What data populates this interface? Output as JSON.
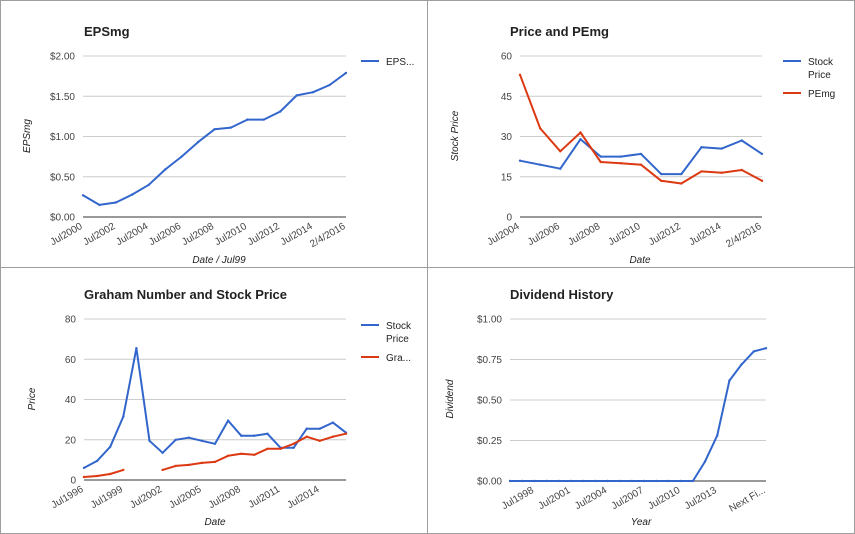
{
  "charts": [
    {
      "title": "EPSmg",
      "xlabel": "Date / Jul99",
      "ylabel": "EPSmg",
      "x_ticks": [
        "Jul2000",
        "Jul2002",
        "Jul2004",
        "Jul2006",
        "Jul2008",
        "Jul2010",
        "Jul2012",
        "Jul2014",
        "2/4/2016"
      ],
      "y_ticks": [
        "$0.00",
        "$0.50",
        "$1.00",
        "$1.50",
        "$2.00"
      ],
      "legend": [
        "EPS..."
      ]
    },
    {
      "title": "Price and PEmg",
      "xlabel": "Date",
      "ylabel": "Stock Price",
      "x_ticks": [
        "Jul2004",
        "Jul2006",
        "Jul2008",
        "Jul2010",
        "Jul2012",
        "Jul2014",
        "2/4/2016"
      ],
      "y_ticks": [
        "0",
        "15",
        "30",
        "45",
        "60"
      ],
      "legend": [
        [
          "Stock",
          "Price"
        ],
        [
          "PEmg"
        ]
      ]
    },
    {
      "title": "Graham Number and Stock Price",
      "xlabel": "Date",
      "ylabel": "Price",
      "x_ticks": [
        "Jul1996",
        "Jul1999",
        "Jul2002",
        "Jul2005",
        "Jul2008",
        "Jul2011",
        "Jul2014"
      ],
      "y_ticks": [
        "0",
        "20",
        "40",
        "60",
        "80"
      ],
      "legend": [
        [
          "Stock",
          "Price"
        ],
        [
          "Gra..."
        ]
      ]
    },
    {
      "title": "Dividend History",
      "xlabel": "Year",
      "ylabel": "Dividend",
      "x_ticks": [
        "Jul1998",
        "Jul2001",
        "Jul2004",
        "Jul2007",
        "Jul2010",
        "Jul2013",
        "Next Fi..."
      ],
      "y_ticks": [
        "$0.00",
        "$0.25",
        "$0.50",
        "$0.75",
        "$1.00"
      ],
      "legend": []
    }
  ],
  "chart_data": [
    {
      "type": "line",
      "title": "EPSmg",
      "xlabel": "Date / Jul99",
      "ylabel": "EPSmg",
      "ylim": [
        0,
        2
      ],
      "x_ticks": [
        "Jul2000",
        "Jul2002",
        "Jul2004",
        "Jul2006",
        "Jul2008",
        "Jul2010",
        "Jul2012",
        "Jul2014",
        "2/4/2016"
      ],
      "series": [
        {
          "name": "EPS...",
          "color": "#3366cc",
          "x": [
            2000,
            2001,
            2002,
            2003,
            2004,
            2005,
            2006,
            2007,
            2008,
            2009,
            2010,
            2011,
            2012,
            2013,
            2014,
            2015,
            2016
          ],
          "values": [
            0.27,
            0.15,
            0.18,
            0.28,
            0.4,
            0.59,
            0.75,
            0.93,
            1.09,
            1.11,
            1.21,
            1.21,
            1.31,
            1.51,
            1.55,
            1.64,
            1.79
          ]
        }
      ]
    },
    {
      "type": "line",
      "title": "Price and PEmg",
      "xlabel": "Date",
      "ylabel": "Stock Price",
      "ylim": [
        0,
        60
      ],
      "x_ticks": [
        "Jul2004",
        "Jul2006",
        "Jul2008",
        "Jul2010",
        "Jul2012",
        "Jul2014",
        "2/4/2016"
      ],
      "series": [
        {
          "name": "Stock Price",
          "color": "#3366cc",
          "x": [
            2004,
            2005,
            2006,
            2007,
            2008,
            2009,
            2010,
            2011,
            2012,
            2013,
            2014,
            2015,
            2016
          ],
          "values": [
            21,
            19.5,
            18,
            29,
            22.5,
            22.5,
            23.5,
            16,
            16,
            26,
            25.5,
            28.5,
            23.5
          ]
        },
        {
          "name": "PEmg",
          "color": "#dc3912",
          "x": [
            2004,
            2005,
            2006,
            2007,
            2008,
            2009,
            2010,
            2011,
            2012,
            2013,
            2014,
            2015,
            2016
          ],
          "values": [
            53,
            33,
            24.5,
            31.5,
            20.5,
            20,
            19.5,
            13.5,
            12.5,
            17,
            16.5,
            17.5,
            13.5
          ]
        }
      ]
    },
    {
      "type": "line",
      "title": "Graham Number and Stock Price",
      "xlabel": "Date",
      "ylabel": "Price",
      "ylim": [
        0,
        80
      ],
      "x_ticks": [
        "Jul1996",
        "Jul1999",
        "Jul2002",
        "Jul2005",
        "Jul2008",
        "Jul2011",
        "Jul2014"
      ],
      "series": [
        {
          "name": "Stock Price",
          "color": "#3366cc",
          "x": [
            1996,
            1997,
            1998,
            1999,
            2000,
            2001,
            2002,
            2003,
            2004,
            2005,
            2006,
            2007,
            2008,
            2009,
            2010,
            2011,
            2012,
            2013,
            2014,
            2015,
            2016
          ],
          "values": [
            6,
            9.5,
            16.5,
            31.5,
            65.5,
            19.5,
            13.5,
            20,
            21,
            19.5,
            18,
            29.5,
            22,
            22,
            23,
            16,
            16,
            25.5,
            25.5,
            28.5,
            23.5
          ]
        },
        {
          "name": "Gra...",
          "color": "#dc3912",
          "x": [
            1996,
            1997,
            1998,
            1999,
            2000,
            null,
            2002,
            2003,
            2004,
            2005,
            2006,
            2007,
            2008,
            2009,
            2010,
            2011,
            2012,
            2013,
            2014,
            2015,
            2016
          ],
          "values": [
            1.5,
            2,
            3,
            5,
            null,
            null,
            5,
            7,
            7.5,
            8.5,
            9,
            12,
            13,
            12.5,
            15.5,
            15.5,
            18,
            21.5,
            19.5,
            21.5,
            23
          ]
        }
      ]
    },
    {
      "type": "line",
      "title": "Dividend History",
      "xlabel": "Year",
      "ylabel": "Dividend",
      "ylim": [
        0,
        1
      ],
      "x_ticks": [
        "Jul1998",
        "Jul2001",
        "Jul2004",
        "Jul2007",
        "Jul2010",
        "Jul2013",
        "Next Fi..."
      ],
      "series": [
        {
          "color": "#3366cc",
          "x": [
            1996,
            1997,
            1998,
            1999,
            2000,
            2001,
            2002,
            2003,
            2004,
            2005,
            2006,
            2007,
            2008,
            2009,
            2010,
            2011,
            2012,
            2013,
            2014,
            2015,
            2016,
            2017
          ],
          "values": [
            0,
            0,
            0,
            0,
            0,
            0,
            0,
            0,
            0,
            0,
            0,
            0,
            0,
            0,
            0,
            0,
            0.12,
            0.28,
            0.62,
            0.72,
            0.8,
            0.82
          ]
        }
      ]
    }
  ]
}
